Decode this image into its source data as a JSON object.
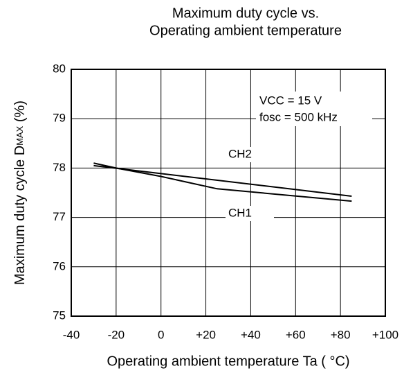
{
  "chart_data": {
    "type": "line",
    "title": [
      "Maximum duty cycle vs.",
      "Operating ambient temperature"
    ],
    "xlabel": "Operating ambient temperature Ta ( °C)",
    "ylabel": "Maximum duty cycle D",
    "ylabel_subscript": "MAX",
    "ylabel_unit": " (%)",
    "series": [
      {
        "name": "CH1",
        "color": "#000000",
        "x": [
          -30,
          -20,
          0,
          25,
          85
        ],
        "values": [
          78.1,
          78.0,
          77.83,
          77.58,
          77.33
        ]
      },
      {
        "name": "CH2",
        "color": "#000000",
        "x": [
          -30,
          85
        ],
        "values": [
          78.05,
          77.43
        ]
      }
    ],
    "annotations": [
      "VCC = 15 V",
      "fosc = 500 kHz"
    ],
    "xlim": [
      -40,
      100
    ],
    "xticks": [
      -40,
      -20,
      0,
      {
        "value": 20,
        "label": "+20"
      },
      {
        "value": 40,
        "label": "+40"
      },
      {
        "value": 60,
        "label": "+60"
      },
      {
        "value": 80,
        "label": "+80"
      },
      {
        "value": 100,
        "label": "+100"
      }
    ],
    "ylim": [
      75,
      80
    ],
    "yticks": [
      75,
      76,
      77,
      78,
      79,
      80
    ],
    "grid": true
  }
}
